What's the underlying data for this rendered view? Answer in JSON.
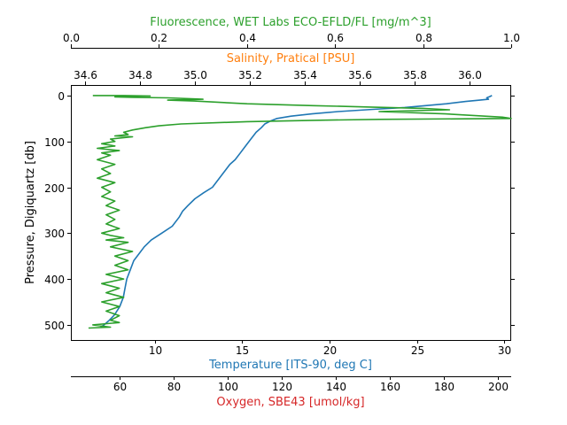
{
  "chart_data": {
    "type": "line",
    "ylabel": "Pressure, Digiquartz [db]",
    "y_axis": {
      "range": [
        533,
        -23
      ],
      "inverted": true,
      "ticks": [
        0,
        100,
        200,
        300,
        400,
        500
      ]
    },
    "axes": [
      {
        "position": "bottom",
        "label": "Temperature [ITS-90, deg C]",
        "color": "#1f77b4",
        "range": [
          5.2,
          30.4
        ],
        "ticks": [
          10,
          15,
          20,
          25,
          30
        ]
      },
      {
        "position": "bottom-offset",
        "label": "Oxygen, SBE43 [umol/kg]",
        "color": "#d62728",
        "range": [
          42,
          205
        ],
        "ticks": [
          60,
          80,
          100,
          120,
          140,
          160,
          180,
          200
        ]
      },
      {
        "position": "top-offset",
        "label": "Fluorescence, WET Labs ECO-EFLD/FL [mg/m^3]",
        "color": "#2ca02c",
        "range": [
          0.0,
          1.0
        ],
        "ticks": [
          0.0,
          0.2,
          0.4,
          0.6,
          0.8,
          1.0
        ],
        "tick_labels": [
          "0.0",
          "0.2",
          "0.4",
          "0.6",
          "0.8",
          "1.0"
        ]
      },
      {
        "position": "top",
        "label": "Salinity, Pratical [PSU]",
        "color": "#ff7f0e",
        "range": [
          34.55,
          36.15
        ],
        "ticks": [
          34.6,
          34.8,
          35.0,
          35.2,
          35.4,
          35.6,
          35.8,
          36.0
        ],
        "tick_labels": [
          "34.6",
          "34.8",
          "35.0",
          "35.2",
          "35.4",
          "35.6",
          "35.8",
          "36.0"
        ]
      }
    ],
    "series": [
      {
        "color": "#1f77b4",
        "x_axis": "Temperature [ITS-90, deg C]",
        "points": [
          [
            29.3,
            0
          ],
          [
            29.2,
            2
          ],
          [
            29.0,
            5
          ],
          [
            29.1,
            8
          ],
          [
            28.6,
            10
          ],
          [
            27.8,
            13
          ],
          [
            26.7,
            18
          ],
          [
            25.5,
            22
          ],
          [
            24.3,
            26
          ],
          [
            22.5,
            30
          ],
          [
            20.5,
            35
          ],
          [
            19.0,
            40
          ],
          [
            17.8,
            45
          ],
          [
            17.0,
            50
          ],
          [
            16.6,
            56
          ],
          [
            16.3,
            62
          ],
          [
            16.1,
            70
          ],
          [
            15.8,
            80
          ],
          [
            15.5,
            95
          ],
          [
            15.2,
            110
          ],
          [
            14.9,
            125
          ],
          [
            14.6,
            140
          ],
          [
            14.3,
            150
          ],
          [
            14.0,
            165
          ],
          [
            13.7,
            180
          ],
          [
            13.3,
            200
          ],
          [
            12.8,
            212
          ],
          [
            12.3,
            225
          ],
          [
            11.9,
            240
          ],
          [
            11.6,
            252
          ],
          [
            11.4,
            265
          ],
          [
            11.0,
            285
          ],
          [
            10.4,
            300
          ],
          [
            9.8,
            315
          ],
          [
            9.4,
            330
          ],
          [
            9.1,
            345
          ],
          [
            8.8,
            360
          ],
          [
            8.6,
            380
          ],
          [
            8.4,
            400
          ],
          [
            8.3,
            420
          ],
          [
            8.2,
            440
          ],
          [
            8.0,
            460
          ],
          [
            7.7,
            478
          ],
          [
            7.4,
            490
          ],
          [
            7.1,
            500
          ],
          [
            6.9,
            505
          ]
        ]
      },
      {
        "color": "#2ca02c",
        "x_axis": "Fluorescence, WET Labs ECO-EFLD/FL [mg/m^3]",
        "points": [
          [
            0.05,
            0
          ],
          [
            0.12,
            0
          ],
          [
            0.18,
            1
          ],
          [
            0.12,
            2
          ],
          [
            0.1,
            3
          ],
          [
            0.14,
            4
          ],
          [
            0.22,
            5
          ],
          [
            0.3,
            8
          ],
          [
            0.22,
            10
          ],
          [
            0.28,
            12
          ],
          [
            0.4,
            18
          ],
          [
            0.55,
            22
          ],
          [
            0.68,
            25
          ],
          [
            0.8,
            28
          ],
          [
            0.86,
            31
          ],
          [
            0.7,
            35
          ],
          [
            0.85,
            40
          ],
          [
            0.98,
            47
          ],
          [
            1.0,
            50
          ],
          [
            0.7,
            52
          ],
          [
            0.55,
            54
          ],
          [
            0.4,
            57
          ],
          [
            0.25,
            62
          ],
          [
            0.2,
            66
          ],
          [
            0.17,
            70
          ],
          [
            0.14,
            75
          ],
          [
            0.12,
            80
          ],
          [
            0.13,
            85
          ],
          [
            0.1,
            88
          ],
          [
            0.14,
            90
          ],
          [
            0.09,
            95
          ],
          [
            0.1,
            100
          ],
          [
            0.07,
            105
          ],
          [
            0.1,
            110
          ],
          [
            0.06,
            115
          ],
          [
            0.11,
            120
          ],
          [
            0.07,
            125
          ],
          [
            0.09,
            130
          ],
          [
            0.06,
            140
          ],
          [
            0.1,
            150
          ],
          [
            0.07,
            160
          ],
          [
            0.09,
            170
          ],
          [
            0.06,
            180
          ],
          [
            0.1,
            190
          ],
          [
            0.07,
            200
          ],
          [
            0.09,
            210
          ],
          [
            0.07,
            220
          ],
          [
            0.1,
            230
          ],
          [
            0.08,
            240
          ],
          [
            0.11,
            250
          ],
          [
            0.08,
            260
          ],
          [
            0.1,
            270
          ],
          [
            0.08,
            280
          ],
          [
            0.11,
            290
          ],
          [
            0.07,
            300
          ],
          [
            0.09,
            305
          ],
          [
            0.12,
            310
          ],
          [
            0.08,
            315
          ],
          [
            0.13,
            320
          ],
          [
            0.09,
            330
          ],
          [
            0.14,
            340
          ],
          [
            0.1,
            350
          ],
          [
            0.13,
            360
          ],
          [
            0.1,
            370
          ],
          [
            0.13,
            380
          ],
          [
            0.08,
            390
          ],
          [
            0.12,
            400
          ],
          [
            0.07,
            410
          ],
          [
            0.11,
            420
          ],
          [
            0.08,
            430
          ],
          [
            0.12,
            440
          ],
          [
            0.07,
            450
          ],
          [
            0.11,
            460
          ],
          [
            0.08,
            470
          ],
          [
            0.11,
            480
          ],
          [
            0.09,
            490
          ],
          [
            0.11,
            495
          ],
          [
            0.05,
            500
          ],
          [
            0.09,
            505
          ],
          [
            0.04,
            507
          ]
        ]
      }
    ]
  }
}
